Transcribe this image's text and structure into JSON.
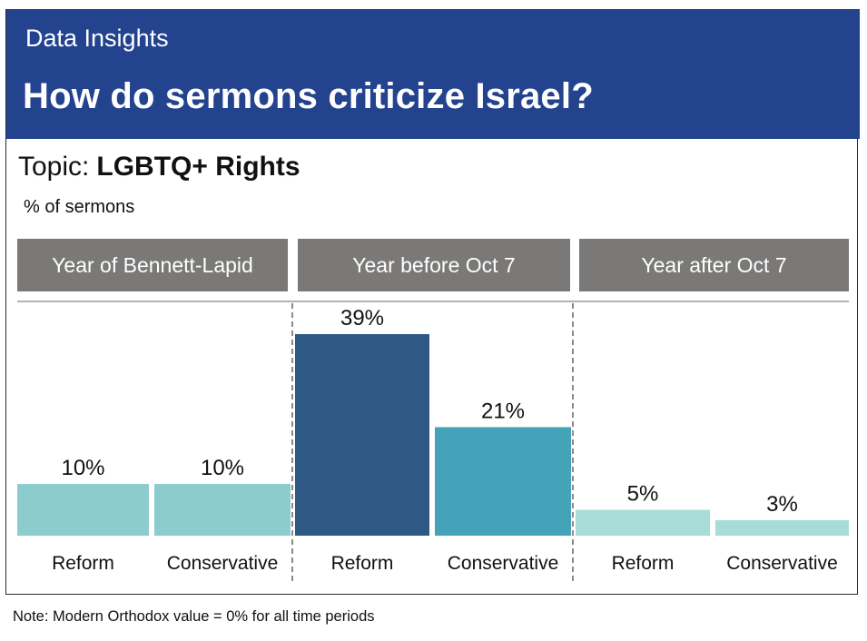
{
  "header": {
    "kicker": "Data Insights",
    "title": "How do sermons criticize Israel?"
  },
  "topic": {
    "label": "Topic:",
    "value": "LGBTQ+ Rights"
  },
  "unit_label": "% of sermons",
  "note": "Note: Modern Orthodox value = 0% for all time periods",
  "colors": {
    "header_bg": "#23438f",
    "group_header_bg": "#7a7977",
    "bars": [
      "#8ccbce",
      "#8ccbce",
      "#2e5985",
      "#45a3b9",
      "#a8dcd6",
      "#a8dcd6"
    ]
  },
  "chart_data": {
    "type": "bar",
    "groups": [
      "Year of Bennett-Lapid",
      "Year before Oct 7",
      "Year after Oct 7"
    ],
    "categories": [
      "Reform",
      "Conservative",
      "Reform",
      "Conservative",
      "Reform",
      "Conservative"
    ],
    "group_index": [
      0,
      0,
      1,
      1,
      2,
      2
    ],
    "values": [
      10,
      10,
      39,
      21,
      5,
      3
    ],
    "value_labels": [
      "10%",
      "10%",
      "39%",
      "21%",
      "5%",
      "3%"
    ],
    "ylabel": "% of sermons",
    "ylim": [
      0,
      39
    ],
    "grid": false,
    "legend": false
  }
}
